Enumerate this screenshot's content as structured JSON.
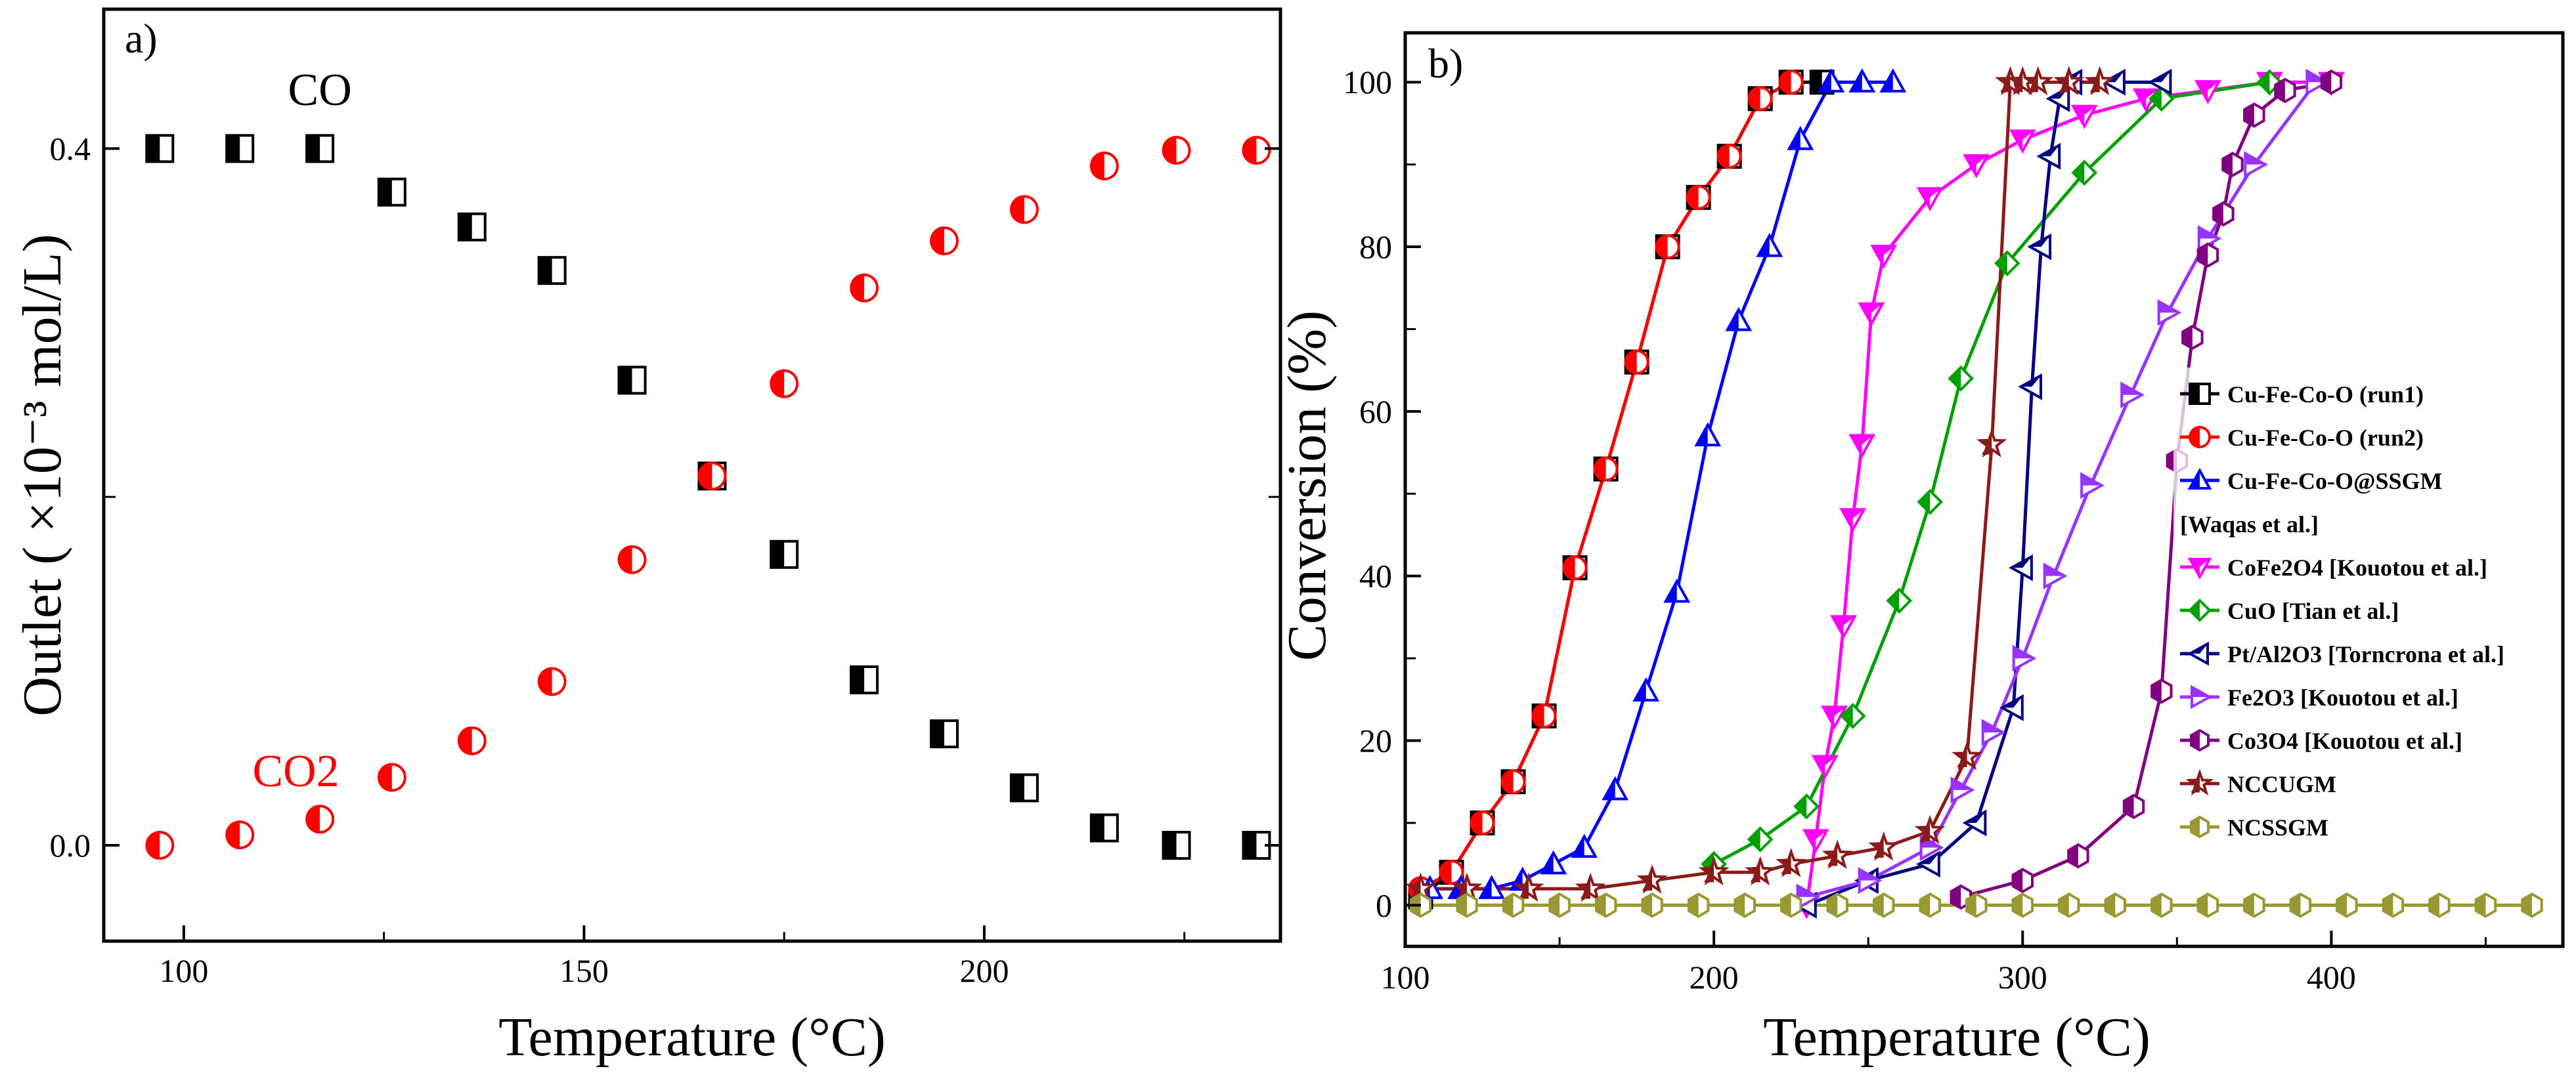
{
  "chart_data": [
    {
      "type": "scatter",
      "panel_label": "a)",
      "xlabel": "Temperature (°C)",
      "ylabel": "Outlet ( ×10⁻³ mol/L)",
      "xlim": [
        90,
        237
      ],
      "ylim": [
        -0.055,
        0.48
      ],
      "xticks": [
        "100",
        "150",
        "200"
      ],
      "yticks": [
        "0.0",
        "0.4"
      ],
      "grid": false,
      "series": [
        {
          "name": "CO",
          "color": "#000000",
          "marker": "half-square",
          "x": [
            97,
            107,
            117,
            126,
            136,
            146,
            156,
            166,
            175,
            185,
            195,
            205,
            215,
            224,
            234
          ],
          "y": [
            0.4,
            0.4,
            0.4,
            0.375,
            0.355,
            0.33,
            0.267,
            0.212,
            0.167,
            0.095,
            0.064,
            0.033,
            0.01,
            0.0,
            0.0
          ]
        },
        {
          "name": "CO2",
          "color": "#ff0000",
          "marker": "half-circle",
          "x": [
            97,
            107,
            117,
            126,
            136,
            146,
            156,
            166,
            175,
            185,
            195,
            205,
            215,
            224,
            234
          ],
          "y": [
            0.0,
            0.006,
            0.015,
            0.039,
            0.06,
            0.094,
            0.164,
            0.212,
            0.265,
            0.32,
            0.347,
            0.365,
            0.39,
            0.399,
            0.399
          ]
        }
      ],
      "annotations": [
        {
          "text": "CO",
          "x": 117,
          "y": 0.425,
          "color": "#000000"
        },
        {
          "text": "CO2",
          "x": 114,
          "y": 0.034,
          "color": "#ff0000"
        }
      ]
    },
    {
      "type": "line",
      "panel_label": "b)",
      "xlabel": "Temperature (°C)",
      "ylabel": "Conversion (%)",
      "xlim": [
        100,
        475
      ],
      "ylim": [
        -5,
        106
      ],
      "xticks": [
        "100",
        "200",
        "300",
        "400"
      ],
      "yticks": [
        "0",
        "20",
        "40",
        "60",
        "80",
        "100"
      ],
      "grid": false,
      "legend_location": "center-right",
      "series": [
        {
          "name": "Cu-Fe-Co-O (run1)",
          "color": "#000000",
          "marker": "half-square",
          "x": [
            105,
            115,
            125,
            135,
            145,
            155,
            165,
            175,
            185,
            195,
            205,
            215,
            225,
            235
          ],
          "y": [
            1,
            4,
            10,
            15,
            23,
            41,
            53,
            66,
            80,
            86,
            91,
            98,
            100,
            100
          ]
        },
        {
          "name": "Cu-Fe-Co-O (run2)",
          "color": "#ff0000",
          "marker": "half-circle",
          "x": [
            105,
            115,
            125,
            135,
            145,
            155,
            165,
            175,
            185,
            195,
            205,
            215,
            225
          ],
          "y": [
            2,
            4,
            10,
            15,
            23,
            41,
            53,
            66,
            80,
            86,
            91,
            98,
            100
          ]
        },
        {
          "name": "Cu-Fe-Co-O@SSGM",
          "color": "#0000ff",
          "marker": "triangle-up",
          "x": [
            108,
            118,
            128,
            138,
            148,
            158,
            168,
            178,
            188,
            198,
            208,
            218,
            228,
            238,
            248,
            258
          ],
          "y": [
            2,
            2,
            2,
            3,
            5,
            7,
            14,
            26,
            38,
            57,
            71,
            80,
            93,
            100,
            100,
            100
          ]
        },
        {
          "name": "[Waqas et al.]",
          "color": "#000000",
          "legend_only": true,
          "x": [],
          "y": []
        },
        {
          "name": "CoFe2O4 [Kouotou et al.]",
          "color": "#ff00ff",
          "marker": "triangle-down",
          "x": [
            230,
            233,
            236,
            239,
            242,
            245,
            248,
            251,
            255,
            270,
            285,
            300,
            320,
            340,
            360,
            380,
            400
          ],
          "y": [
            0,
            8,
            17,
            23,
            34,
            47,
            56,
            72,
            79,
            86,
            90,
            93,
            96,
            98,
            99,
            100,
            100
          ]
        },
        {
          "name": "CuO [Tian et al.]",
          "color": "#00a000",
          "marker": "diamond",
          "x": [
            200,
            215,
            230,
            245,
            260,
            270,
            280,
            295,
            320,
            345,
            380
          ],
          "y": [
            5,
            8,
            12,
            23,
            37,
            49,
            64,
            78,
            89,
            98,
            100
          ]
        },
        {
          "name": "Pt/Al2O3 [Torncrona et al.]",
          "color": "#000080",
          "marker": "triangle-left",
          "x": [
            230,
            250,
            270,
            285,
            297,
            300,
            303,
            306,
            309,
            312,
            316,
            330,
            345
          ],
          "y": [
            0,
            3,
            5,
            10,
            24,
            41,
            63,
            80,
            91,
            98,
            100,
            100,
            100
          ]
        },
        {
          "name": "Fe2O3 [Kouotou et al.]",
          "color": "#9933ff",
          "marker": "triangle-right",
          "x": [
            230,
            250,
            270,
            280,
            290,
            300,
            310,
            322,
            335,
            347,
            360,
            375,
            395
          ],
          "y": [
            1,
            3,
            7,
            14,
            21,
            30,
            40,
            51,
            62,
            72,
            81,
            90,
            100
          ]
        },
        {
          "name": "Co3O4 [Kouotou et al.]",
          "color": "#800080",
          "marker": "half-hexagon",
          "x": [
            280,
            300,
            318,
            336,
            345,
            350,
            355,
            360,
            365,
            368,
            375,
            385,
            400
          ],
          "y": [
            1,
            3,
            6,
            12,
            26,
            54,
            69,
            79,
            84,
            90,
            96,
            99,
            100
          ]
        },
        {
          "name": "NCCUGM",
          "color": "#8b1a1a",
          "marker": "star",
          "x": [
            105,
            120,
            140,
            160,
            180,
            200,
            215,
            225,
            240,
            255,
            270,
            282,
            290,
            296,
            300,
            305,
            315,
            325
          ],
          "y": [
            2,
            2,
            2,
            2,
            3,
            4,
            4,
            5,
            6,
            7,
            9,
            18,
            56,
            100,
            100,
            100,
            100,
            100
          ]
        },
        {
          "name": "NCSSGM",
          "color": "#999933",
          "marker": "hexagon",
          "x": [
            105,
            120,
            135,
            150,
            165,
            180,
            195,
            210,
            225,
            240,
            255,
            270,
            285,
            300,
            315,
            330,
            345,
            360,
            375,
            390,
            405,
            420,
            435,
            450,
            465
          ],
          "y": [
            0,
            0,
            0,
            0,
            0,
            0,
            0,
            0,
            0,
            0,
            0,
            0,
            0,
            0,
            0,
            0,
            0,
            0,
            0,
            0,
            0,
            0,
            0,
            0,
            0
          ]
        }
      ]
    }
  ]
}
